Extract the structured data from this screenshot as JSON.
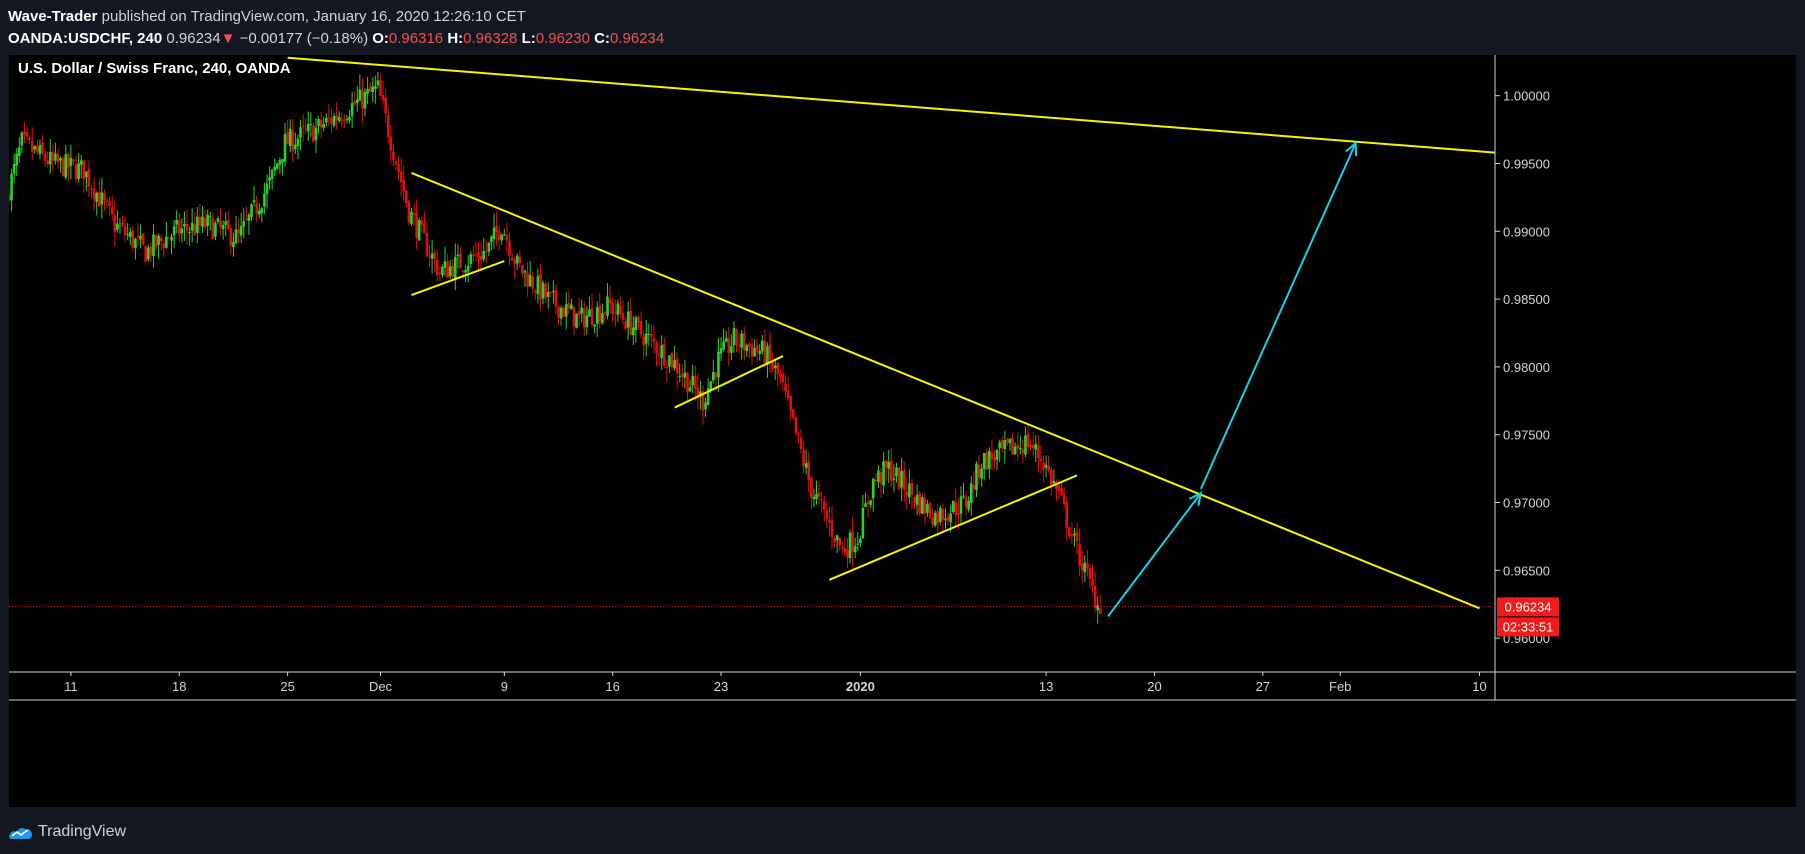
{
  "header": {
    "author": "Wave-Trader",
    "published_text": "published on TradingView.com, January 16, 2020 12:26:10 CET",
    "symbol": "OANDA:USDCHF, 240",
    "last": "0.96234",
    "change_arrow": "▼",
    "change": "−0.00177 (−0.18%)",
    "o_label": "O:",
    "o": "0.96316",
    "h_label": "H:",
    "h": "0.96328",
    "l_label": "L:",
    "l": "0.96230",
    "c_label": "C:",
    "c": "0.96234"
  },
  "chart_title": "U.S. Dollar / Swiss Franc, 240, OANDA",
  "footer": {
    "brand": "TradingView",
    "icon": "tradingview-logo-icon"
  },
  "colors": {
    "up": "#2bd12b",
    "down": "#e01010",
    "trend": "#f5f500",
    "arrow": "#16d0e8",
    "price_tag": "#f21b1b"
  },
  "chart_data": {
    "type": "candlestick",
    "title": "U.S. Dollar / Swiss Franc, 240, OANDA",
    "ylim": [
      0.9575,
      1.003
    ],
    "y_ticks": [
      1.0,
      0.995,
      0.99,
      0.985,
      0.98,
      0.975,
      0.97,
      0.965,
      0.96
    ],
    "y_tick_labels": [
      "1.00000",
      "0.99500",
      "0.99000",
      "0.98500",
      "0.98000",
      "0.97500",
      "0.97000",
      "0.96500",
      "0.96000"
    ],
    "x_ticks": [
      {
        "label": "11",
        "date": "2019-11-11"
      },
      {
        "label": "18",
        "date": "2019-11-18"
      },
      {
        "label": "25",
        "date": "2019-11-25"
      },
      {
        "label": "Dec",
        "date": "2019-12-01"
      },
      {
        "label": "9",
        "date": "2019-12-09"
      },
      {
        "label": "16",
        "date": "2019-12-16"
      },
      {
        "label": "23",
        "date": "2019-12-23"
      },
      {
        "label": "2020",
        "date": "2020-01-01",
        "bold": true
      },
      {
        "label": "13",
        "date": "2020-01-13"
      },
      {
        "label": "20",
        "date": "2020-01-20"
      },
      {
        "label": "27",
        "date": "2020-01-27"
      },
      {
        "label": "Feb",
        "date": "2020-02-01"
      },
      {
        "label": "10",
        "date": "2020-02-10"
      }
    ],
    "x_range": [
      "2019-11-07",
      "2020-02-11"
    ],
    "price_anchors": [
      [
        "2019-11-07",
        0.9925
      ],
      [
        "2019-11-08",
        0.9965
      ],
      [
        "2019-11-10",
        0.995
      ],
      [
        "2019-11-12",
        0.9945
      ],
      [
        "2019-11-14",
        0.9905
      ],
      [
        "2019-11-16",
        0.9885
      ],
      [
        "2019-11-18",
        0.99
      ],
      [
        "2019-11-20",
        0.9905
      ],
      [
        "2019-11-22",
        0.9895
      ],
      [
        "2019-11-24",
        0.9935
      ],
      [
        "2019-11-25",
        0.9965
      ],
      [
        "2019-11-27",
        0.9975
      ],
      [
        "2019-11-29",
        0.999
      ],
      [
        "2019-12-01",
        1.0005
      ],
      [
        "2019-12-02",
        0.996
      ],
      [
        "2019-12-03",
        0.9915
      ],
      [
        "2019-12-05",
        0.987
      ],
      [
        "2019-12-08",
        0.9885
      ],
      [
        "2019-12-09",
        0.9905
      ],
      [
        "2019-12-10",
        0.9875
      ],
      [
        "2019-12-12",
        0.985
      ],
      [
        "2019-12-14",
        0.9835
      ],
      [
        "2019-12-16",
        0.9845
      ],
      [
        "2019-12-18",
        0.9825
      ],
      [
        "2019-12-20",
        0.9805
      ],
      [
        "2019-12-22",
        0.9775
      ],
      [
        "2019-12-23",
        0.9805
      ],
      [
        "2019-12-24",
        0.982
      ],
      [
        "2019-12-26",
        0.981
      ],
      [
        "2019-12-27",
        0.979
      ],
      [
        "2019-12-29",
        0.971
      ],
      [
        "2019-12-31",
        0.9665
      ],
      [
        "2020-01-01",
        0.9675
      ],
      [
        "2020-01-02",
        0.9715
      ],
      [
        "2020-01-03",
        0.9725
      ],
      [
        "2020-01-05",
        0.97
      ],
      [
        "2020-01-06",
        0.969
      ],
      [
        "2020-01-08",
        0.97
      ],
      [
        "2020-01-09",
        0.973
      ],
      [
        "2020-01-11",
        0.974
      ],
      [
        "2020-01-12",
        0.9745
      ],
      [
        "2020-01-13",
        0.973
      ],
      [
        "2020-01-14",
        0.9705
      ],
      [
        "2020-01-15",
        0.967
      ],
      [
        "2020-01-16",
        0.964
      ],
      [
        "2020-01-16.5",
        0.9625
      ]
    ],
    "last_price": 0.96234,
    "last_price_label": "0.96234",
    "countdown": "02:33:51",
    "drawings": {
      "trendlines": [
        {
          "from": [
            "2019-11-25",
            1.0028
          ],
          "to": [
            "2020-02-11",
            0.9958
          ]
        },
        {
          "from": [
            "2019-12-03",
            0.9943
          ],
          "to": [
            "2020-02-10",
            0.9622
          ]
        },
        {
          "from": [
            "2019-12-03",
            0.9853
          ],
          "to": [
            "2019-12-09",
            0.9878
          ]
        },
        {
          "from": [
            "2019-12-20",
            0.977
          ],
          "to": [
            "2019-12-27",
            0.9808
          ]
        },
        {
          "from": [
            "2019-12-30",
            0.9643
          ],
          "to": [
            "2020-01-15",
            0.972
          ]
        }
      ],
      "arrows": [
        {
          "from": [
            "2020-01-17",
            0.9616
          ],
          "to": [
            "2020-01-23",
            0.9707
          ]
        },
        {
          "from": [
            "2020-01-23",
            0.971
          ],
          "to": [
            "2020-02-02",
            0.9965
          ]
        }
      ]
    }
  }
}
